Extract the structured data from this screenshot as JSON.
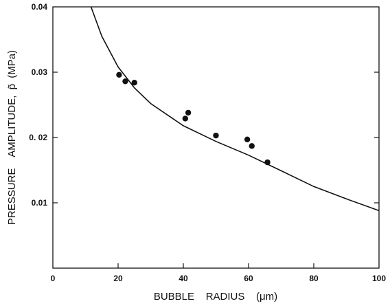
{
  "chart_data": {
    "type": "scatter",
    "title": "",
    "xlabel": "BUBBLE    RADIUS    (μm)",
    "ylabel": "PRESSURE    AMPLITUDE,  p̃  (MPa)",
    "xlim": [
      0,
      100
    ],
    "ylim": [
      0,
      0.04
    ],
    "x_ticks": [
      0,
      20,
      40,
      60,
      80,
      100
    ],
    "y_ticks": [
      0.01,
      0.02,
      0.03,
      0.04
    ],
    "x_tick_labels": [
      "0",
      "20",
      "40",
      "60",
      "80",
      "100"
    ],
    "y_tick_labels": [
      "0.01",
      "0. 02",
      "0.03",
      "0.04"
    ],
    "grid": false,
    "series": [
      {
        "kind": "points",
        "x": [
          20.3,
          22.2,
          25.0,
          40.6,
          41.5,
          50.0,
          59.6,
          61.0,
          65.8
        ],
        "y": [
          0.0296,
          0.0286,
          0.0284,
          0.0229,
          0.0238,
          0.0203,
          0.0197,
          0.0187,
          0.0162
        ]
      },
      {
        "kind": "curve",
        "x": [
          11.7,
          15,
          20,
          25,
          30,
          40,
          50,
          60,
          70,
          80,
          90,
          100
        ],
        "y": [
          0.04,
          0.0355,
          0.0308,
          0.0276,
          0.0252,
          0.0218,
          0.0194,
          0.0173,
          0.0149,
          0.0125,
          0.0106,
          0.0088
        ]
      }
    ]
  }
}
